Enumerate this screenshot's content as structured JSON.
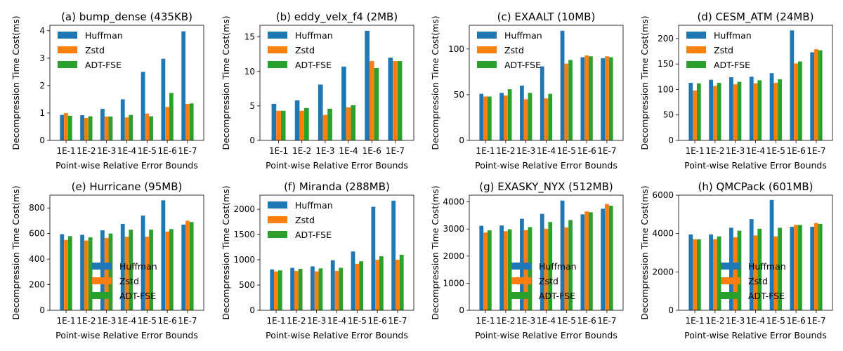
{
  "colors": {
    "Huffman": "#1f77b4",
    "Zstd": "#ff7f0e",
    "ADT-FSE": "#2ca02c"
  },
  "chart_data": [
    {
      "type": "bar",
      "title": "(a) bump_dense (435KB)",
      "xlabel": "Point-wise Relative Error Bounds",
      "ylabel": "Decompression Time Cost(ms)",
      "categories": [
        "1E-1",
        "1E-2",
        "1E-3",
        "1E-4",
        "1E-5",
        "1E-6",
        "1E-7"
      ],
      "ylim": [
        0,
        4.2
      ],
      "yticks": [
        0,
        1,
        2,
        3,
        4
      ],
      "legend_position": "upper-left",
      "series": [
        {
          "name": "Huffman",
          "values": [
            0.93,
            0.92,
            1.15,
            1.5,
            2.5,
            2.98,
            3.98
          ]
        },
        {
          "name": "Zstd",
          "values": [
            1.0,
            0.82,
            0.87,
            0.84,
            0.98,
            1.22,
            1.33
          ]
        },
        {
          "name": "ADT-FSE",
          "values": [
            0.9,
            0.88,
            0.87,
            0.93,
            0.88,
            1.73,
            1.35
          ]
        }
      ]
    },
    {
      "type": "bar",
      "title": "(b) eddy_velx_f4 (2MB)",
      "xlabel": "Point-wise Relative Error Bounds",
      "ylabel": "Decompression Time Cost(ms)",
      "categories": [
        "1E-1",
        "1E-2",
        "1E-3",
        "1E-4",
        "1E-6",
        "1E-7"
      ],
      "ylim": [
        0,
        16.7
      ],
      "yticks": [
        0,
        5,
        10,
        15
      ],
      "legend_position": "upper-left",
      "series": [
        {
          "name": "Huffman",
          "values": [
            5.3,
            5.8,
            8.1,
            10.7,
            15.9,
            12.0
          ]
        },
        {
          "name": "Zstd",
          "values": [
            4.3,
            4.3,
            3.7,
            4.8,
            11.5,
            11.5
          ]
        },
        {
          "name": "ADT-FSE",
          "values": [
            4.3,
            4.7,
            4.6,
            5.1,
            10.5,
            11.5
          ]
        }
      ]
    },
    {
      "type": "bar",
      "title": "(c) EXAALT (10MB)",
      "xlabel": "Point-wise Relative Error Bounds",
      "ylabel": "Decompression Time Cost(ms)",
      "categories": [
        "1E-1",
        "1E-2",
        "1E-3",
        "1E-4",
        "1E-5",
        "1E-6",
        "1E-7"
      ],
      "ylim": [
        0,
        126
      ],
      "yticks": [
        0,
        50,
        100
      ],
      "legend_position": "upper-left",
      "series": [
        {
          "name": "Huffman",
          "values": [
            51,
            52,
            60,
            81,
            120,
            91,
            90
          ]
        },
        {
          "name": "Zstd",
          "values": [
            48,
            49,
            45,
            46,
            84,
            93,
            92
          ]
        },
        {
          "name": "ADT-FSE",
          "values": [
            48,
            56,
            52,
            51,
            88,
            92,
            91
          ]
        }
      ]
    },
    {
      "type": "bar",
      "title": "(d) CESM_ATM (24MB)",
      "xlabel": "Point-wise Relative Error Bounds",
      "ylabel": "Decompression Time Cost(ms)",
      "categories": [
        "1E-1",
        "1E-2",
        "1E-3",
        "1E-4",
        "1E-5",
        "1E-6",
        "1E-7"
      ],
      "ylim": [
        0,
        226
      ],
      "yticks": [
        0,
        50,
        100,
        150,
        200
      ],
      "legend_position": "upper-left",
      "series": [
        {
          "name": "Huffman",
          "values": [
            113,
            119,
            124,
            125,
            132,
            216,
            173
          ]
        },
        {
          "name": "Zstd",
          "values": [
            98,
            107,
            110,
            112,
            113,
            151,
            179
          ]
        },
        {
          "name": "ADT-FSE",
          "values": [
            112,
            113,
            115,
            118,
            120,
            155,
            177
          ]
        }
      ]
    },
    {
      "type": "bar",
      "title": "(e) Hurricane (95MB)",
      "xlabel": "Point-wise Relative Error Bounds",
      "ylabel": "Decompression Time Cost(ms)",
      "categories": [
        "1E-1",
        "1E-2",
        "1E-3",
        "1E-4",
        "1E-5",
        "1E-6",
        "1E-7"
      ],
      "ylim": [
        0,
        900
      ],
      "yticks": [
        0,
        200,
        400,
        600,
        800
      ],
      "legend_position": "lower-center",
      "series": [
        {
          "name": "Huffman",
          "values": [
            595,
            590,
            625,
            675,
            740,
            860,
            670
          ]
        },
        {
          "name": "Zstd",
          "values": [
            550,
            545,
            565,
            575,
            575,
            615,
            700
          ]
        },
        {
          "name": "ADT-FSE",
          "values": [
            580,
            570,
            600,
            630,
            630,
            635,
            690
          ]
        }
      ]
    },
    {
      "type": "bar",
      "title": "(f) Miranda (288MB)",
      "xlabel": "Point-wise Relative Error Bounds",
      "ylabel": "Decompression Time Cost(ms)",
      "categories": [
        "1E-1",
        "1E-2",
        "1E-3",
        "1E-4",
        "1E-5",
        "1E-6",
        "1E-7"
      ],
      "ylim": [
        0,
        2280
      ],
      "yticks": [
        0,
        500,
        1000,
        1500,
        2000
      ],
      "legend_position": "upper-left",
      "series": [
        {
          "name": "Huffman",
          "values": [
            810,
            840,
            870,
            990,
            1165,
            2050,
            2170
          ]
        },
        {
          "name": "Zstd",
          "values": [
            770,
            780,
            770,
            780,
            920,
            1000,
            1000
          ]
        },
        {
          "name": "ADT-FSE",
          "values": [
            790,
            820,
            830,
            840,
            970,
            1070,
            1100
          ]
        }
      ]
    },
    {
      "type": "bar",
      "title": "(g) EXASKY_NYX (512MB)",
      "xlabel": "Point-wise Relative Error Bounds",
      "ylabel": "Decompression Time Cost(ms)",
      "categories": [
        "1E-1",
        "1E-2",
        "1E-3",
        "1E-4",
        "1E-5",
        "1E-6",
        "1E-7"
      ],
      "ylim": [
        0,
        4250
      ],
      "yticks": [
        0,
        1000,
        2000,
        3000,
        4000
      ],
      "legend_position": "lower-center",
      "series": [
        {
          "name": "Huffman",
          "values": [
            3120,
            3130,
            3380,
            3560,
            4050,
            3540,
            3750
          ]
        },
        {
          "name": "Zstd",
          "values": [
            2870,
            2920,
            2960,
            3010,
            3060,
            3650,
            3920
          ]
        },
        {
          "name": "ADT-FSE",
          "values": [
            2950,
            2990,
            3070,
            3260,
            3330,
            3620,
            3860
          ]
        }
      ]
    },
    {
      "type": "bar",
      "title": "(h) QMCPack (601MB)",
      "xlabel": "Point-wise Relative Error Bounds",
      "ylabel": "Decompression Time Cost(ms)",
      "categories": [
        "1E-1",
        "1E-2",
        "1E-3",
        "1E-4",
        "1E-5",
        "1E-6",
        "1E-7"
      ],
      "ylim": [
        0,
        6000
      ],
      "yticks": [
        0,
        2000,
        4000,
        6000
      ],
      "legend_position": "lower-center",
      "series": [
        {
          "name": "Huffman",
          "values": [
            3950,
            3950,
            4300,
            4750,
            5750,
            4350,
            4350
          ]
        },
        {
          "name": "Zstd",
          "values": [
            3700,
            3700,
            3800,
            3900,
            3850,
            4450,
            4550
          ]
        },
        {
          "name": "ADT-FSE",
          "values": [
            3700,
            3850,
            4150,
            4250,
            4300,
            4450,
            4500
          ]
        }
      ]
    }
  ]
}
